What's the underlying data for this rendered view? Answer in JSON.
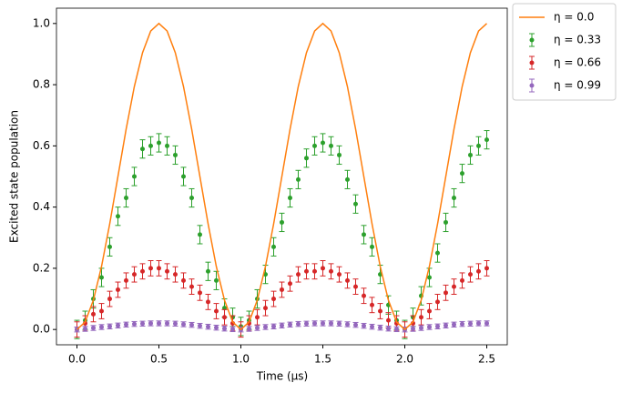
{
  "chart_data": {
    "type": "line",
    "xlabel": "Time (μs)",
    "ylabel": "Excited state population",
    "x": [
      0,
      0.05,
      0.1,
      0.15,
      0.2,
      0.25,
      0.3,
      0.35,
      0.4,
      0.45,
      0.5,
      0.55,
      0.6,
      0.65,
      0.7,
      0.75,
      0.8,
      0.85,
      0.9,
      0.95,
      1.0,
      1.05,
      1.1,
      1.15,
      1.2,
      1.25,
      1.3,
      1.35,
      1.4,
      1.45,
      1.5,
      1.55,
      1.6,
      1.65,
      1.7,
      1.75,
      1.8,
      1.85,
      1.9,
      1.95,
      2.0,
      2.05,
      2.1,
      2.15,
      2.2,
      2.25,
      2.3,
      2.35,
      2.4,
      2.45,
      2.5
    ],
    "series": [
      {
        "name": "η = 0.0",
        "kind": "line",
        "color": "#ff7f0e",
        "values": [
          0,
          0.0245,
          0.0955,
          0.2061,
          0.3455,
          0.5,
          0.6545,
          0.7939,
          0.9045,
          0.9755,
          1,
          0.9755,
          0.9045,
          0.7939,
          0.6545,
          0.5,
          0.3455,
          0.2061,
          0.0955,
          0.0245,
          0,
          0.0245,
          0.0955,
          0.2061,
          0.3455,
          0.5,
          0.6545,
          0.7939,
          0.9045,
          0.9755,
          1,
          0.9755,
          0.9045,
          0.7939,
          0.6545,
          0.5,
          0.3455,
          0.2061,
          0.0955,
          0.0245,
          0,
          0.0245,
          0.0955,
          0.2061,
          0.3455,
          0.5,
          0.6545,
          0.7939,
          0.9045,
          0.9755,
          1
        ]
      },
      {
        "name": "η = 0.33",
        "kind": "errorbar",
        "color": "#2ca02c",
        "error": 0.03,
        "values": [
          0.0,
          0.03,
          0.1,
          0.17,
          0.27,
          0.37,
          0.43,
          0.5,
          0.59,
          0.6,
          0.61,
          0.6,
          0.57,
          0.5,
          0.43,
          0.31,
          0.19,
          0.16,
          0.07,
          0.04,
          0.01,
          0.03,
          0.1,
          0.18,
          0.27,
          0.35,
          0.43,
          0.49,
          0.56,
          0.6,
          0.61,
          0.6,
          0.57,
          0.49,
          0.41,
          0.31,
          0.27,
          0.18,
          0.08,
          0.03,
          0.0,
          0.04,
          0.11,
          0.17,
          0.25,
          0.35,
          0.43,
          0.51,
          0.57,
          0.6,
          0.62
        ]
      },
      {
        "name": "η = 0.66",
        "kind": "errorbar",
        "color": "#d62728",
        "error": 0.025,
        "values": [
          0.0,
          0.02,
          0.05,
          0.06,
          0.1,
          0.13,
          0.16,
          0.18,
          0.19,
          0.2,
          0.2,
          0.19,
          0.18,
          0.16,
          0.14,
          0.12,
          0.09,
          0.06,
          0.04,
          0.02,
          0.0,
          0.02,
          0.04,
          0.07,
          0.1,
          0.13,
          0.15,
          0.18,
          0.19,
          0.19,
          0.2,
          0.19,
          0.18,
          0.16,
          0.14,
          0.11,
          0.08,
          0.06,
          0.03,
          0.02,
          0.0,
          0.02,
          0.04,
          0.06,
          0.09,
          0.12,
          0.14,
          0.16,
          0.18,
          0.19,
          0.2
        ]
      },
      {
        "name": "η = 0.99",
        "kind": "errorbar",
        "color": "#9467bd",
        "error": 0.008,
        "values": [
          0.0,
          0.002,
          0.005,
          0.008,
          0.01,
          0.013,
          0.016,
          0.018,
          0.019,
          0.02,
          0.02,
          0.02,
          0.019,
          0.017,
          0.015,
          0.012,
          0.009,
          0.006,
          0.003,
          0.001,
          0.0,
          0.002,
          0.005,
          0.008,
          0.01,
          0.013,
          0.016,
          0.018,
          0.019,
          0.02,
          0.02,
          0.02,
          0.019,
          0.017,
          0.015,
          0.012,
          0.009,
          0.006,
          0.003,
          0.001,
          0.0,
          0.002,
          0.005,
          0.008,
          0.01,
          0.013,
          0.016,
          0.018,
          0.019,
          0.02,
          0.02
        ]
      }
    ],
    "xlim": [
      -0.125,
      2.625
    ],
    "ylim": [
      -0.05,
      1.05
    ],
    "xticks": [
      {
        "value": 0,
        "label": "0.0"
      },
      {
        "value": 0.5,
        "label": "0.5"
      },
      {
        "value": 1,
        "label": "1.0"
      },
      {
        "value": 1.5,
        "label": "1.5"
      },
      {
        "value": 2,
        "label": "2.0"
      },
      {
        "value": 2.5,
        "label": "2.5"
      }
    ],
    "yticks": [
      {
        "value": 0,
        "label": "0.0"
      },
      {
        "value": 0.2,
        "label": "0.2"
      },
      {
        "value": 0.4,
        "label": "0.4"
      },
      {
        "value": 0.6,
        "label": "0.6"
      },
      {
        "value": 0.8,
        "label": "0.8"
      },
      {
        "value": 1,
        "label": "1.0"
      }
    ],
    "grid": false,
    "legend": "outside-upper-right"
  }
}
